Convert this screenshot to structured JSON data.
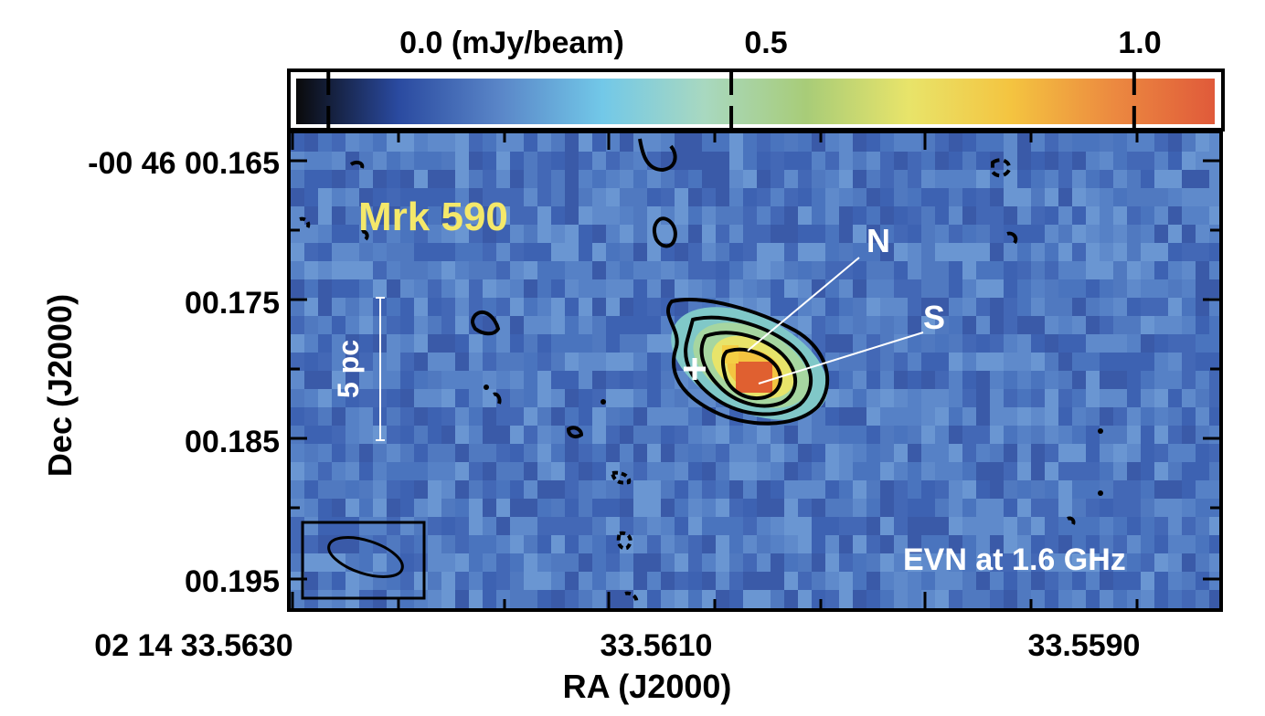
{
  "chart_data": {
    "type": "heatmap",
    "title": "Mrk 590",
    "subtitle": "EVN at 1.6 GHz",
    "xlabel": "RA (J2000)",
    "ylabel": "Dec (J2000)",
    "x_ticks": [
      "02 14 33.5630",
      "33.5610",
      "33.5590"
    ],
    "y_ticks": [
      "-00 46 00.165",
      "00.175",
      "00.185",
      "00.195"
    ],
    "colorbar": {
      "ticks": [
        "0.0 (mJy/beam)",
        "0.5",
        "1.0"
      ],
      "tick_values": [
        0.0,
        0.5,
        1.0
      ],
      "range": [
        -0.04,
        1.1
      ],
      "colors": [
        "#0a0a0a",
        "#2a4aa0",
        "#5a86c8",
        "#72c8e8",
        "#a8d8c0",
        "#a8cc78",
        "#e8e46a",
        "#f4c440",
        "#ec8a40",
        "#e05a3a"
      ]
    },
    "scale_bar_label": "5 pc",
    "annotations": [
      {
        "label": "N",
        "ra": 33.561,
        "dec": 0.1785
      },
      {
        "label": "S",
        "ra": 33.56092,
        "dec": 0.1805
      }
    ],
    "reference_marker": {
      "symbol": "+",
      "ra": 33.5611,
      "dec": 0.18
    },
    "peak_mjy_per_beam": 1.05
  },
  "colors": {
    "background_noise": "#4a74be",
    "title_text": "#f4e86a",
    "overlay_text": "#ffffff",
    "contour": "#000000"
  }
}
